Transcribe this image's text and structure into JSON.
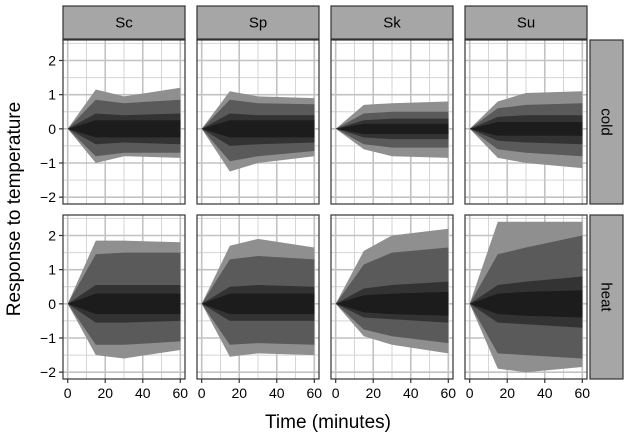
{
  "chart_data": {
    "type": "area",
    "xlabel": "Time (minutes)",
    "ylabel": "Response to temperature",
    "columns": [
      "Sc",
      "Sp",
      "Sk",
      "Su"
    ],
    "rows": [
      "cold",
      "heat"
    ],
    "x": [
      0,
      15,
      30,
      60
    ],
    "x_ticks": [
      0,
      20,
      40,
      60
    ],
    "y_ticks": [
      -2,
      -1,
      0,
      1,
      2
    ],
    "y_tick_labels": [
      "−2",
      "−1",
      "0",
      "1",
      "2"
    ],
    "x_range": [
      -2.5,
      62.5
    ],
    "y_range": [
      -2.2,
      2.6
    ],
    "grid": true,
    "band_colors": [
      "#8f8f8f",
      "#5a5a5a",
      "#333333",
      "#1c1c1c"
    ],
    "panels": [
      {
        "row": "cold",
        "col": "Sc",
        "bands": [
          [
            1.15,
            0.95,
            1.2
          ],
          [
            0.85,
            0.75,
            0.85
          ],
          [
            0.45,
            0.4,
            0.45
          ],
          [
            0.25,
            0.25,
            0.25
          ]
        ],
        "bands_lower": [
          [
            -1.0,
            -0.8,
            -0.85
          ],
          [
            -0.8,
            -0.7,
            -0.7
          ],
          [
            -0.45,
            -0.4,
            -0.45
          ],
          [
            -0.25,
            -0.25,
            -0.25
          ]
        ]
      },
      {
        "row": "cold",
        "col": "Sp",
        "bands": [
          [
            1.1,
            0.95,
            0.9
          ],
          [
            0.85,
            0.75,
            0.72
          ],
          [
            0.45,
            0.4,
            0.4
          ],
          [
            0.25,
            0.25,
            0.25
          ]
        ],
        "bands_lower": [
          [
            -1.25,
            -1.0,
            -0.8
          ],
          [
            -0.95,
            -0.8,
            -0.65
          ],
          [
            -0.5,
            -0.45,
            -0.4
          ],
          [
            -0.25,
            -0.25,
            -0.25
          ]
        ]
      },
      {
        "row": "cold",
        "col": "Sk",
        "bands": [
          [
            0.7,
            0.75,
            0.8
          ],
          [
            0.45,
            0.5,
            0.5
          ],
          [
            0.25,
            0.3,
            0.3
          ],
          [
            0.15,
            0.15,
            0.15
          ]
        ],
        "bands_lower": [
          [
            -0.6,
            -0.8,
            -0.85
          ],
          [
            -0.45,
            -0.55,
            -0.55
          ],
          [
            -0.25,
            -0.3,
            -0.3
          ],
          [
            -0.15,
            -0.15,
            -0.15
          ]
        ]
      },
      {
        "row": "cold",
        "col": "Su",
        "bands": [
          [
            0.8,
            1.05,
            1.1
          ],
          [
            0.6,
            0.7,
            0.75
          ],
          [
            0.35,
            0.4,
            0.4
          ],
          [
            0.2,
            0.2,
            0.2
          ]
        ],
        "bands_lower": [
          [
            -0.85,
            -1.0,
            -1.15
          ],
          [
            -0.6,
            -0.7,
            -0.8
          ],
          [
            -0.35,
            -0.4,
            -0.45
          ],
          [
            -0.2,
            -0.2,
            -0.2
          ]
        ]
      },
      {
        "row": "heat",
        "col": "Sc",
        "bands": [
          [
            1.85,
            1.85,
            1.8
          ],
          [
            1.45,
            1.5,
            1.5
          ],
          [
            0.55,
            0.55,
            0.55
          ],
          [
            0.3,
            0.3,
            0.3
          ]
        ],
        "bands_lower": [
          [
            -1.5,
            -1.6,
            -1.35
          ],
          [
            -1.2,
            -1.2,
            -1.1
          ],
          [
            -0.55,
            -0.55,
            -0.5
          ],
          [
            -0.3,
            -0.3,
            -0.3
          ]
        ]
      },
      {
        "row": "heat",
        "col": "Sp",
        "bands": [
          [
            1.7,
            1.9,
            1.65
          ],
          [
            1.3,
            1.4,
            1.3
          ],
          [
            0.5,
            0.55,
            0.5
          ],
          [
            0.3,
            0.3,
            0.3
          ]
        ],
        "bands_lower": [
          [
            -1.55,
            -1.45,
            -1.5
          ],
          [
            -1.2,
            -1.15,
            -1.2
          ],
          [
            -0.5,
            -0.5,
            -0.5
          ],
          [
            -0.3,
            -0.3,
            -0.3
          ]
        ]
      },
      {
        "row": "heat",
        "col": "Sk",
        "bands": [
          [
            1.55,
            2.0,
            2.2
          ],
          [
            1.15,
            1.5,
            1.65
          ],
          [
            0.45,
            0.55,
            0.65
          ],
          [
            0.25,
            0.3,
            0.35
          ]
        ],
        "bands_lower": [
          [
            -0.95,
            -1.2,
            -1.45
          ],
          [
            -0.75,
            -0.95,
            -1.15
          ],
          [
            -0.4,
            -0.45,
            -0.55
          ],
          [
            -0.25,
            -0.3,
            -0.35
          ]
        ]
      },
      {
        "row": "heat",
        "col": "Su",
        "bands": [
          [
            2.4,
            2.4,
            2.4
          ],
          [
            1.45,
            1.65,
            2.0
          ],
          [
            0.55,
            0.65,
            0.8
          ],
          [
            0.3,
            0.35,
            0.4
          ]
        ],
        "bands_lower": [
          [
            -1.9,
            -2.0,
            -1.85
          ],
          [
            -1.45,
            -1.5,
            -1.6
          ],
          [
            -0.55,
            -0.6,
            -0.7
          ],
          [
            -0.3,
            -0.35,
            -0.4
          ]
        ]
      }
    ]
  }
}
